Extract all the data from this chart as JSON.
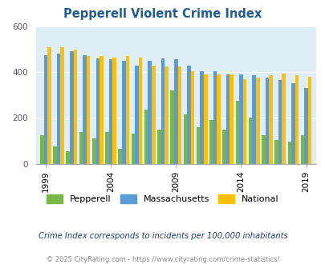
{
  "title": "Pepperell Violent Crime Index",
  "years": [
    1999,
    2000,
    2001,
    2002,
    2003,
    2004,
    2005,
    2006,
    2007,
    2008,
    2009,
    2010,
    2011,
    2012,
    2013,
    2014,
    2015,
    2016,
    2017,
    2018,
    2019
  ],
  "pepperell": [
    125,
    75,
    55,
    140,
    110,
    140,
    65,
    130,
    235,
    150,
    320,
    215,
    160,
    190,
    150,
    275,
    200,
    125,
    105,
    95,
    125
  ],
  "massachusetts": [
    475,
    480,
    490,
    475,
    460,
    455,
    450,
    430,
    450,
    460,
    455,
    430,
    405,
    405,
    390,
    390,
    385,
    375,
    365,
    350,
    330
  ],
  "national": [
    510,
    510,
    500,
    470,
    470,
    465,
    470,
    465,
    430,
    425,
    425,
    405,
    390,
    390,
    390,
    370,
    375,
    385,
    395,
    385,
    380
  ],
  "pepperell_color": "#7ab648",
  "massachusetts_color": "#5b9bd5",
  "national_color": "#ffc000",
  "bg_color": "#deeef6",
  "title_color": "#1f5c99",
  "ylabel_max": 600,
  "yticks": [
    0,
    200,
    400,
    600
  ],
  "xtick_labels": [
    "1999",
    "2004",
    "2009",
    "2014",
    "2019"
  ],
  "xtick_positions": [
    1999,
    2004,
    2009,
    2014,
    2019
  ],
  "footnote1": "Crime Index corresponds to incidents per 100,000 inhabitants",
  "footnote2": "© 2025 CityRating.com - https://www.cityrating.com/crime-statistics/",
  "legend_labels": [
    "Pepperell",
    "Massachusetts",
    "National"
  ]
}
